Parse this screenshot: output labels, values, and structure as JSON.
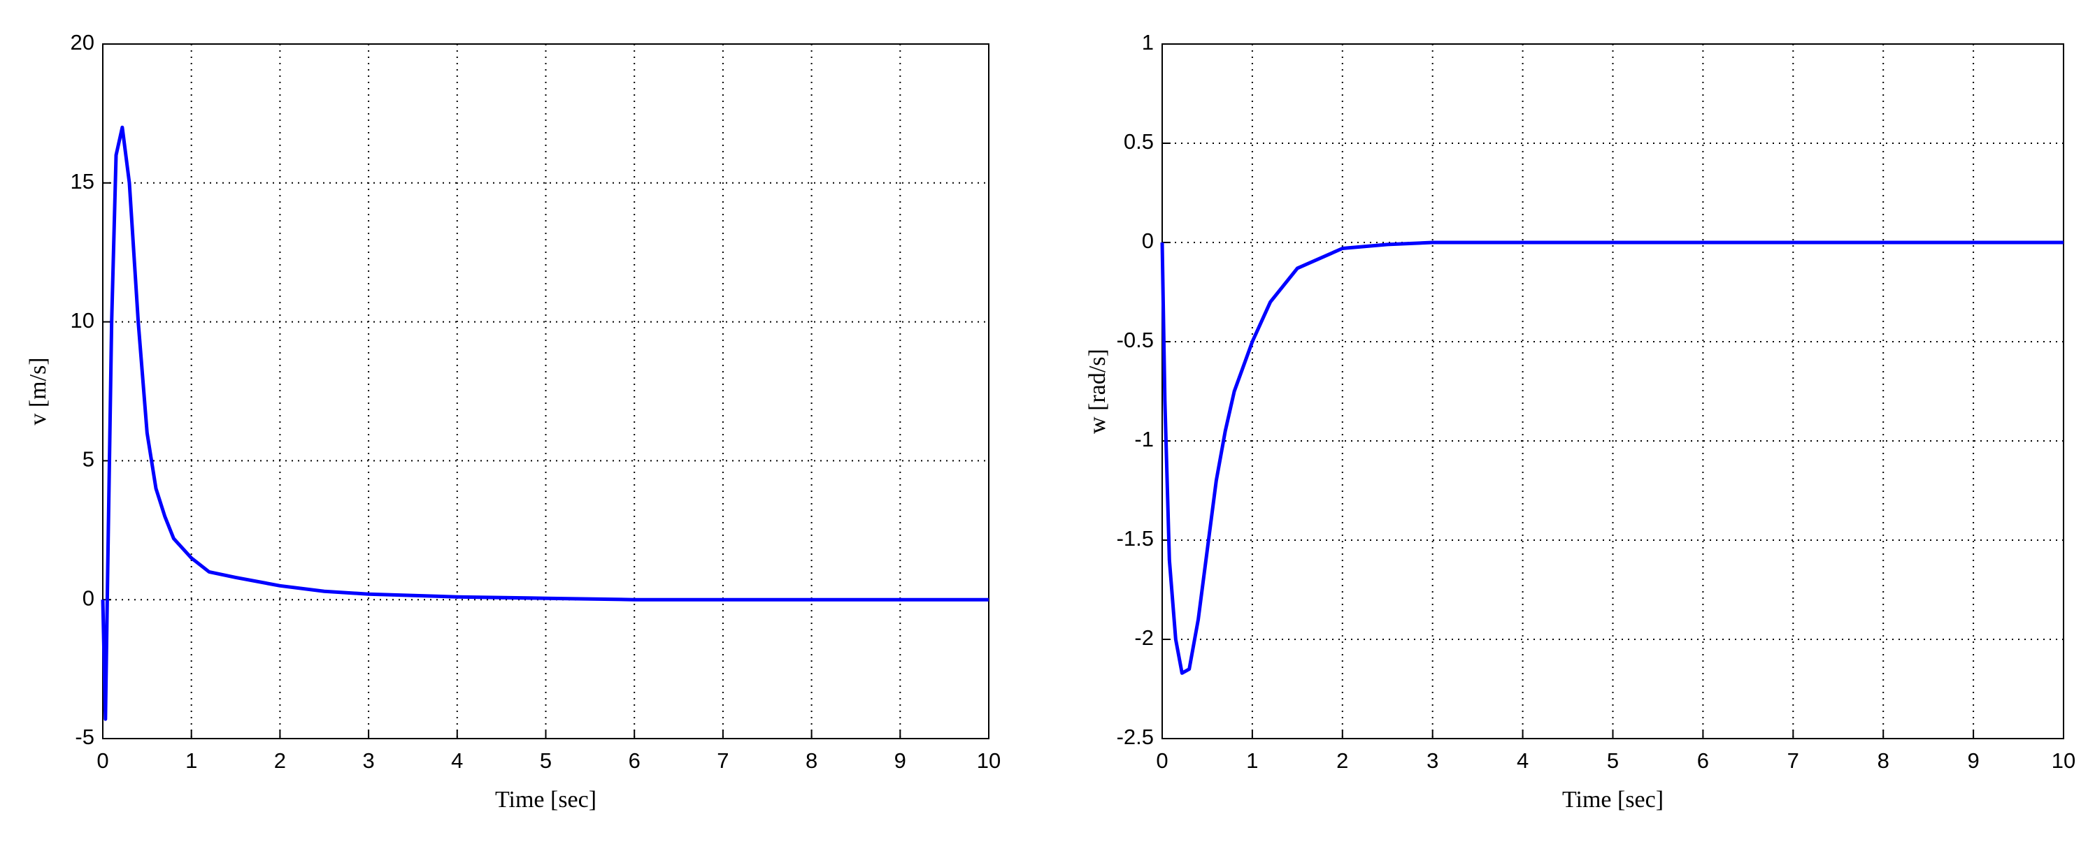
{
  "chart_data": [
    {
      "type": "line",
      "xlabel": "Time [sec]",
      "ylabel": "v [m/s]",
      "x": [
        0,
        0.03,
        0.06,
        0.1,
        0.15,
        0.22,
        0.3,
        0.4,
        0.5,
        0.6,
        0.7,
        0.8,
        1,
        1.2,
        1.5,
        2,
        2.5,
        3,
        4,
        5,
        6,
        7,
        8,
        9,
        10
      ],
      "series": [
        {
          "color": "#0000ff",
          "values": [
            0,
            -4.3,
            2,
            10,
            16,
            17,
            15,
            10,
            6,
            4,
            3,
            2.2,
            1.5,
            1.0,
            0.8,
            0.5,
            0.3,
            0.2,
            0.1,
            0.05,
            0,
            0,
            0,
            0,
            0
          ]
        }
      ],
      "xlim": [
        0,
        10
      ],
      "ylim": [
        -5,
        20
      ],
      "xticks": [
        0,
        1,
        2,
        3,
        4,
        5,
        6,
        7,
        8,
        9,
        10
      ],
      "yticks": [
        -5,
        0,
        5,
        10,
        15,
        20
      ],
      "grid": true
    },
    {
      "type": "line",
      "xlabel": "Time [sec]",
      "ylabel": "w [rad/s]",
      "x": [
        0,
        0.03,
        0.08,
        0.15,
        0.22,
        0.3,
        0.4,
        0.5,
        0.6,
        0.7,
        0.8,
        1,
        1.2,
        1.5,
        2,
        2.5,
        3,
        4,
        5,
        6,
        7,
        8,
        9,
        10
      ],
      "series": [
        {
          "color": "#0000ff",
          "values": [
            0,
            -0.8,
            -1.6,
            -2.0,
            -2.17,
            -2.15,
            -1.9,
            -1.55,
            -1.2,
            -0.95,
            -0.75,
            -0.5,
            -0.3,
            -0.13,
            -0.03,
            -0.01,
            0,
            0,
            0,
            0,
            0,
            0,
            0,
            0
          ]
        }
      ],
      "xlim": [
        0,
        10
      ],
      "ylim": [
        -2.5,
        1
      ],
      "xticks": [
        0,
        1,
        2,
        3,
        4,
        5,
        6,
        7,
        8,
        9,
        10
      ],
      "yticks": [
        -2.5,
        -2,
        -1.5,
        -1,
        -0.5,
        0,
        0.5,
        1
      ],
      "grid": true
    }
  ]
}
